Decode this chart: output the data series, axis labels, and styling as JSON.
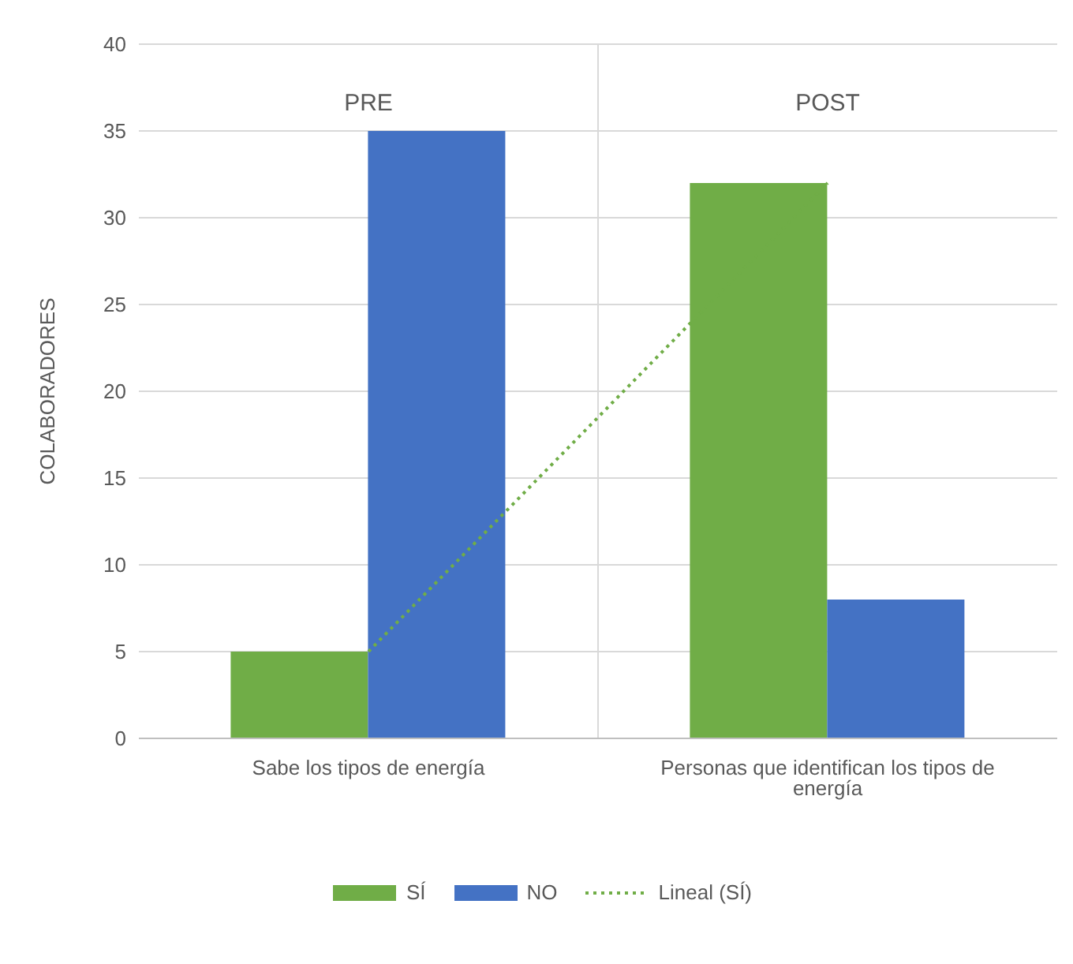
{
  "chart_data": {
    "type": "bar",
    "ylabel": "COLABORADORES",
    "categories": [
      "Sabe los tipos de energía",
      "Personas que identifican los tipos de energía"
    ],
    "series": [
      {
        "name": "SÍ",
        "color": "#70ad47",
        "values": [
          5,
          32
        ]
      },
      {
        "name": "NO",
        "color": "#4472c4",
        "values": [
          35,
          8
        ]
      },
      {
        "name": "Lineal (SÍ)",
        "type": "line",
        "color": "#70ad47",
        "line_style": "dotted",
        "values": [
          5,
          32
        ]
      }
    ],
    "annotations": [
      "PRE",
      "POST"
    ],
    "ylim": [
      0,
      40
    ],
    "yticks": [
      0,
      5,
      10,
      15,
      20,
      25,
      30,
      35,
      40
    ],
    "grid": true,
    "legend": "bottom"
  }
}
